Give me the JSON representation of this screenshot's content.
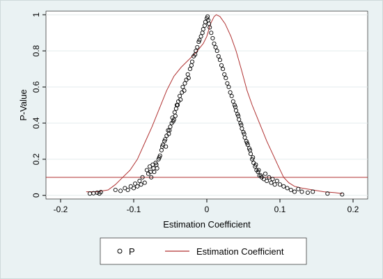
{
  "chart_data": {
    "type": "scatter",
    "xlabel": "Estimation Coefficient",
    "ylabel": "P-Value",
    "xlim": [
      -0.22,
      0.22
    ],
    "ylim": [
      -0.02,
      1.02
    ],
    "x_ticks": [
      -0.2,
      -0.1,
      0,
      0.1,
      0.2
    ],
    "x_tick_labels": [
      "-0.2",
      "-0.1",
      "0",
      "0.1",
      "0.2"
    ],
    "y_ticks": [
      0,
      0.2,
      0.4,
      0.6,
      0.8,
      1
    ],
    "y_tick_labels": [
      "0",
      "0.2",
      "0.4",
      "0.6",
      "0.8",
      "1"
    ],
    "grid": "horizontal",
    "reference_line": {
      "y": 0.1,
      "color": "#b03030"
    },
    "legend_position": "bottom",
    "series": [
      {
        "name": "P",
        "kind": "scatter",
        "marker": "hollow-circle",
        "color": "#000000",
        "points": [
          [
            -0.16,
            0.01
          ],
          [
            -0.155,
            0.012
          ],
          [
            -0.15,
            0.015
          ],
          [
            -0.147,
            0.01
          ],
          [
            -0.145,
            0.018
          ],
          [
            -0.125,
            0.03
          ],
          [
            -0.118,
            0.025
          ],
          [
            -0.112,
            0.04
          ],
          [
            -0.108,
            0.03
          ],
          [
            -0.104,
            0.05
          ],
          [
            -0.1,
            0.04
          ],
          [
            -0.098,
            0.065
          ],
          [
            -0.095,
            0.05
          ],
          [
            -0.092,
            0.08
          ],
          [
            -0.09,
            0.06
          ],
          [
            -0.088,
            0.1
          ],
          [
            -0.085,
            0.07
          ],
          [
            -0.082,
            0.14
          ],
          [
            -0.08,
            0.12
          ],
          [
            -0.078,
            0.16
          ],
          [
            -0.076,
            0.1
          ],
          [
            -0.074,
            0.17
          ],
          [
            -0.072,
            0.13
          ],
          [
            -0.07,
            0.18
          ],
          [
            -0.068,
            0.15
          ],
          [
            -0.066,
            0.2
          ],
          [
            -0.064,
            0.22
          ],
          [
            -0.062,
            0.25
          ],
          [
            -0.06,
            0.28
          ],
          [
            -0.058,
            0.3
          ],
          [
            -0.056,
            0.27
          ],
          [
            -0.055,
            0.33
          ],
          [
            -0.053,
            0.36
          ],
          [
            -0.052,
            0.34
          ],
          [
            -0.05,
            0.38
          ],
          [
            -0.048,
            0.4
          ],
          [
            -0.047,
            0.43
          ],
          [
            -0.045,
            0.42
          ],
          [
            -0.044,
            0.46
          ],
          [
            -0.042,
            0.48
          ],
          [
            -0.04,
            0.5
          ],
          [
            -0.039,
            0.52
          ],
          [
            -0.037,
            0.55
          ],
          [
            -0.036,
            0.53
          ],
          [
            -0.034,
            0.57
          ],
          [
            -0.033,
            0.6
          ],
          [
            -0.031,
            0.58
          ],
          [
            -0.03,
            0.62
          ],
          [
            -0.028,
            0.64
          ],
          [
            -0.026,
            0.67
          ],
          [
            -0.025,
            0.65
          ],
          [
            -0.023,
            0.7
          ],
          [
            -0.021,
            0.72
          ],
          [
            -0.02,
            0.74
          ],
          [
            -0.018,
            0.77
          ],
          [
            -0.016,
            0.78
          ],
          [
            -0.015,
            0.8
          ],
          [
            -0.013,
            0.82
          ],
          [
            -0.011,
            0.85
          ],
          [
            -0.01,
            0.86
          ],
          [
            -0.008,
            0.88
          ],
          [
            -0.006,
            0.9
          ],
          [
            -0.005,
            0.92
          ],
          [
            -0.003,
            0.94
          ],
          [
            -0.002,
            0.96
          ],
          [
            0,
            0.98
          ],
          [
            0.001,
            0.99
          ],
          [
            0.002,
            0.97
          ],
          [
            0.003,
            0.95
          ],
          [
            0.004,
            0.93
          ],
          [
            0.006,
            0.9
          ],
          [
            0.008,
            0.87
          ],
          [
            0.01,
            0.84
          ],
          [
            0.012,
            0.82
          ],
          [
            0.014,
            0.8
          ],
          [
            0.016,
            0.77
          ],
          [
            0.018,
            0.75
          ],
          [
            0.02,
            0.72
          ],
          [
            0.022,
            0.7
          ],
          [
            0.024,
            0.67
          ],
          [
            0.026,
            0.65
          ],
          [
            0.028,
            0.62
          ],
          [
            0.03,
            0.6
          ],
          [
            0.032,
            0.57
          ],
          [
            0.034,
            0.55
          ],
          [
            0.036,
            0.52
          ],
          [
            0.038,
            0.5
          ],
          [
            0.04,
            0.47
          ],
          [
            0.042,
            0.45
          ],
          [
            0.044,
            0.42
          ],
          [
            0.046,
            0.4
          ],
          [
            0.048,
            0.37
          ],
          [
            0.05,
            0.35
          ],
          [
            0.052,
            0.32
          ],
          [
            0.054,
            0.3
          ],
          [
            0.056,
            0.28
          ],
          [
            0.058,
            0.26
          ],
          [
            0.06,
            0.23
          ],
          [
            0.062,
            0.2
          ],
          [
            0.064,
            0.18
          ],
          [
            0.066,
            0.16
          ],
          [
            0.068,
            0.14
          ],
          [
            0.07,
            0.13
          ],
          [
            0.072,
            0.11
          ],
          [
            0.075,
            0.1
          ],
          [
            0.078,
            0.09
          ],
          [
            0.08,
            0.12
          ],
          [
            0.082,
            0.08
          ],
          [
            0.085,
            0.1
          ],
          [
            0.088,
            0.07
          ],
          [
            0.09,
            0.09
          ],
          [
            0.093,
            0.06
          ],
          [
            0.096,
            0.08
          ],
          [
            0.1,
            0.06
          ],
          [
            0.105,
            0.05
          ],
          [
            0.11,
            0.04
          ],
          [
            0.115,
            0.03
          ],
          [
            0.12,
            0.02
          ],
          [
            0.125,
            0.035
          ],
          [
            0.13,
            0.02
          ],
          [
            0.138,
            0.015
          ],
          [
            0.145,
            0.02
          ],
          [
            0.165,
            0.01
          ],
          [
            0.185,
            0.005
          ],
          [
            -0.041,
            0.5
          ],
          [
            -0.043,
            0.44
          ],
          [
            -0.046,
            0.41
          ],
          [
            -0.051,
            0.36
          ],
          [
            -0.057,
            0.31
          ],
          [
            -0.061,
            0.27
          ],
          [
            -0.065,
            0.21
          ],
          [
            -0.069,
            0.17
          ],
          [
            -0.073,
            0.15
          ],
          [
            -0.077,
            0.13
          ],
          [
            0.039,
            0.49
          ],
          [
            0.043,
            0.44
          ],
          [
            0.047,
            0.39
          ],
          [
            0.051,
            0.34
          ],
          [
            0.055,
            0.29
          ],
          [
            0.059,
            0.25
          ],
          [
            0.063,
            0.21
          ],
          [
            0.067,
            0.17
          ],
          [
            0.071,
            0.14
          ],
          [
            0.074,
            0.11
          ]
        ]
      },
      {
        "name": "Estimation Coefficient",
        "kind": "line",
        "color": "#b03030",
        "points": [
          [
            -0.165,
            0.02
          ],
          [
            -0.15,
            0.02
          ],
          [
            -0.135,
            0.03
          ],
          [
            -0.125,
            0.06
          ],
          [
            -0.115,
            0.1
          ],
          [
            -0.105,
            0.14
          ],
          [
            -0.095,
            0.2
          ],
          [
            -0.085,
            0.29
          ],
          [
            -0.075,
            0.38
          ],
          [
            -0.065,
            0.48
          ],
          [
            -0.055,
            0.58
          ],
          [
            -0.045,
            0.66
          ],
          [
            -0.035,
            0.71
          ],
          [
            -0.025,
            0.75
          ],
          [
            -0.015,
            0.79
          ],
          [
            -0.005,
            0.84
          ],
          [
            0.0,
            0.88
          ],
          [
            0.005,
            0.95
          ],
          [
            0.01,
            0.99
          ],
          [
            0.013,
            1.0
          ],
          [
            0.018,
            0.99
          ],
          [
            0.025,
            0.95
          ],
          [
            0.033,
            0.88
          ],
          [
            0.04,
            0.8
          ],
          [
            0.047,
            0.7
          ],
          [
            0.055,
            0.58
          ],
          [
            0.062,
            0.5
          ],
          [
            0.068,
            0.44
          ],
          [
            0.075,
            0.37
          ],
          [
            0.082,
            0.3
          ],
          [
            0.09,
            0.23
          ],
          [
            0.098,
            0.16
          ],
          [
            0.105,
            0.1
          ],
          [
            0.112,
            0.07
          ],
          [
            0.12,
            0.05
          ],
          [
            0.13,
            0.04
          ],
          [
            0.145,
            0.03
          ],
          [
            0.16,
            0.02
          ],
          [
            0.175,
            0.015
          ],
          [
            0.185,
            0.01
          ]
        ]
      }
    ]
  }
}
